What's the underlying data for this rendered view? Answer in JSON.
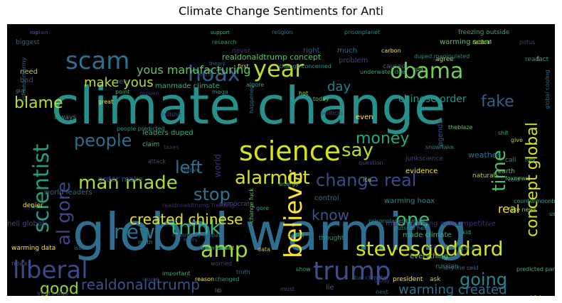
{
  "chart_data": {
    "type": "wordcloud",
    "title": "Climate Change Sentiments for Anti",
    "words": [
      {
        "text": "climate change",
        "weight": 100,
        "color": "#26908c"
      },
      {
        "text": "global warming",
        "weight": 95,
        "color": "#2f6e8e"
      },
      {
        "text": "science",
        "weight": 40,
        "color": "#d7e219"
      },
      {
        "text": "trump",
        "weight": 38,
        "color": "#3d4e8a"
      },
      {
        "text": "scam",
        "weight": 34,
        "color": "#2c728e"
      },
      {
        "text": "year",
        "weight": 33,
        "color": "#bade28"
      },
      {
        "text": "obama",
        "weight": 32,
        "color": "#70cf57"
      },
      {
        "text": "liberal",
        "weight": 32,
        "color": "#3e4989"
      },
      {
        "text": "hoax",
        "weight": 31,
        "color": "#365c8d"
      },
      {
        "text": "believe",
        "weight": 30,
        "color": "#fde725"
      },
      {
        "text": "amp",
        "weight": 30,
        "color": "#a5db36"
      },
      {
        "text": "stevesgoddard",
        "weight": 30,
        "color": "#d2e21b"
      },
      {
        "text": "scientist",
        "weight": 29,
        "color": "#1f9f88"
      },
      {
        "text": "think",
        "weight": 28,
        "color": "#35b779"
      },
      {
        "text": "al gore",
        "weight": 28,
        "color": "#414487"
      },
      {
        "text": "new",
        "weight": 27,
        "color": "#2a788e"
      },
      {
        "text": "alarmist",
        "weight": 26,
        "color": "#d8e219"
      },
      {
        "text": "man made",
        "weight": 26,
        "color": "#a8db34"
      },
      {
        "text": "say",
        "weight": 25,
        "color": "#b5de2b"
      },
      {
        "text": "time",
        "weight": 25,
        "color": "#4ac16d"
      },
      {
        "text": "one",
        "weight": 25,
        "color": "#42be71"
      },
      {
        "text": "going",
        "weight": 25,
        "color": "#23888e"
      },
      {
        "text": "left",
        "weight": 24,
        "color": "#2c718e"
      },
      {
        "text": "money",
        "weight": 24,
        "color": "#24aa83"
      },
      {
        "text": "change real",
        "weight": 24,
        "color": "#3e4a89"
      },
      {
        "text": "people",
        "weight": 23,
        "color": "#2f6c8e"
      },
      {
        "text": "blame",
        "weight": 23,
        "color": "#b8de29"
      },
      {
        "text": "concept global",
        "weight": 23,
        "color": "#d5e21a"
      },
      {
        "text": "stop",
        "weight": 23,
        "color": "#2a768e"
      },
      {
        "text": "fake",
        "weight": 22,
        "color": "#355f8d"
      },
      {
        "text": "good",
        "weight": 22,
        "color": "#90d743"
      },
      {
        "text": "know",
        "weight": 22,
        "color": "#3b528b"
      },
      {
        "text": "realdonaldtrump",
        "weight": 22,
        "color": "#3a538b"
      },
      {
        "text": "created chinese",
        "weight": 20,
        "color": "#e5e419"
      },
      {
        "text": "make yous",
        "weight": 19,
        "color": "#bddf26"
      },
      {
        "text": "day",
        "weight": 19,
        "color": "#277f8e"
      },
      {
        "text": "real",
        "weight": 18,
        "color": "#f1e51d"
      },
      {
        "text": "warming created",
        "weight": 18,
        "color": "#2d708e"
      },
      {
        "text": "yous manufacturing",
        "weight": 17,
        "color": "#5ec962"
      },
      {
        "text": "chinese order",
        "weight": 16,
        "color": "#1f958b"
      }
    ],
    "small_words": [
      "explain",
      "religion",
      "prisonplanet",
      "freezing outside",
      "warming scam",
      "radical",
      "potus",
      "biggest",
      "research",
      "support",
      "never",
      "carbon",
      "right",
      "much",
      "read",
      "fact",
      "realdonaldtrump concept",
      "agree",
      "problem",
      "theory",
      "change concerned",
      "manmade climate",
      "want",
      "first",
      "see",
      "caused",
      "duped manipulated",
      "underwater due",
      "epa",
      "need",
      "bad",
      "usfreedomarmy",
      "guy",
      "point",
      "proven",
      "great",
      "bullshit",
      "happened",
      "maga",
      "algore",
      "today",
      "hot",
      "political",
      "global cooling",
      "always",
      "leaders duped",
      "world",
      "even",
      "agenda",
      "weather",
      "call",
      "hey",
      "earth",
      "natural",
      "junkscience",
      "world leaders",
      "people predicted",
      "claim",
      "taxes",
      "evidence",
      "order make",
      "cold",
      "snowflake",
      "shit",
      "theblaze",
      "give",
      "attack",
      "prove",
      "gore",
      "energy",
      "realdonaldtrump freezing",
      "denier",
      "democrat",
      "control",
      "warming hoax",
      "countermoonbat",
      "foxnews",
      "fake news",
      "hell global",
      "manmade global",
      "called",
      "made climate",
      "manufacturing noncompetitive",
      "warming data",
      "noaa",
      "issue",
      "myth",
      "american",
      "planet",
      "data",
      "worried",
      "lie",
      "russian",
      "predicted parts",
      "study",
      "president",
      "due climate",
      "hurricane",
      "outside hell",
      "kid",
      "everything",
      "ask",
      "look",
      "next",
      "changed",
      "important",
      "cause",
      "reason",
      "must",
      "truth",
      "lib",
      "parts manhattan",
      "manipulated global",
      "concerned fake",
      "years ago",
      "still",
      "snow",
      "isis",
      "tan",
      "used",
      "every",
      "job",
      "prisonplanet bunch",
      "show",
      "change fuck",
      "ice",
      "question",
      "anyone said",
      "thought",
      "us",
      "top"
    ]
  }
}
